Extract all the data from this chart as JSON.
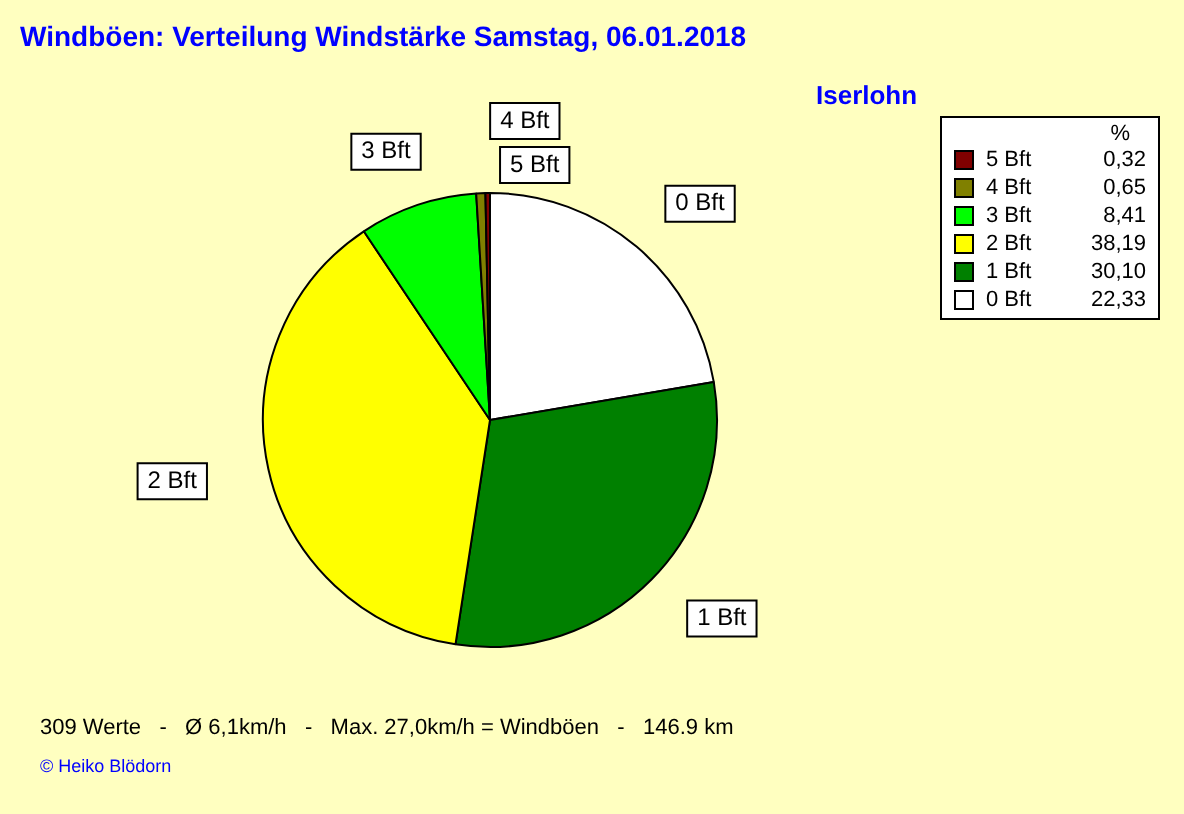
{
  "chart_data": {
    "type": "pie",
    "title": "Windböen: Verteilung Windstärke  Samstag, 06.01.2018",
    "subtitle": "Iserlohn",
    "legend_title": "%",
    "legend": "top right",
    "categories": [
      "5 Bft",
      "4 Bft",
      "3 Bft",
      "2 Bft",
      "1 Bft",
      "0 Bft"
    ],
    "values": [
      0.32,
      0.65,
      8.41,
      38.19,
      30.1,
      22.33
    ],
    "value_labels": [
      "0,32",
      "0,65",
      "8,41",
      "38,19",
      "30,10",
      "22,33"
    ],
    "colors": [
      "#800000",
      "#808000",
      "#00ff00",
      "#ffff00",
      "#008000",
      "#ffffff"
    ],
    "annotations": [
      "309 Werte   -   Ø 6,1km/h   -   Max. 27,0km/h = Windböen   -   146.9 km",
      "© Heiko Blödorn"
    ]
  }
}
